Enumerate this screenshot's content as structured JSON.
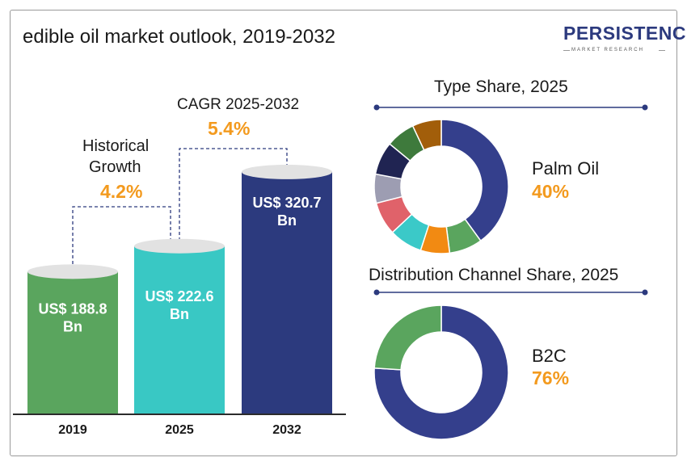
{
  "title": "edible oil market outlook, 2019-2032",
  "logo": {
    "text": "PERSISTENCE",
    "subtext": "MARKET RESEARCH"
  },
  "growth": {
    "historical_label_line1": "Historical",
    "historical_label_line2": "Growth",
    "historical_value": "4.2%",
    "cagr_label": "CAGR 2025-2032",
    "cagr_value": "5.4%"
  },
  "chart_data": [
    {
      "type": "bar",
      "categories": [
        "2019",
        "2025",
        "2032"
      ],
      "values": [
        188.8,
        222.6,
        320.7
      ],
      "value_labels": [
        [
          "US$ 188.8",
          "Bn"
        ],
        [
          "US$ 222.6",
          "Bn"
        ],
        [
          "US$ 320.7",
          "Bn"
        ]
      ],
      "colors": [
        "#5aa55e",
        "#39c8c4",
        "#2c3a7e"
      ]
    },
    {
      "type": "pie",
      "title": "Type  Share, 2025",
      "highlight_label": "Palm Oil",
      "highlight_value": "40%",
      "slices": [
        40,
        8,
        7,
        8,
        8,
        7,
        8,
        7,
        7
      ],
      "colors": [
        "#343f8c",
        "#5aa55e",
        "#f28a12",
        "#3bc9c8",
        "#e0626a",
        "#9d9db2",
        "#202452",
        "#3e7a3c",
        "#a25e0a"
      ]
    },
    {
      "type": "pie",
      "title": "Distribution Channel  Share, 2025",
      "highlight_label": "B2C",
      "highlight_value": "76%",
      "slices": [
        76,
        24
      ],
      "colors": [
        "#343f8c",
        "#5aa55e"
      ]
    }
  ]
}
